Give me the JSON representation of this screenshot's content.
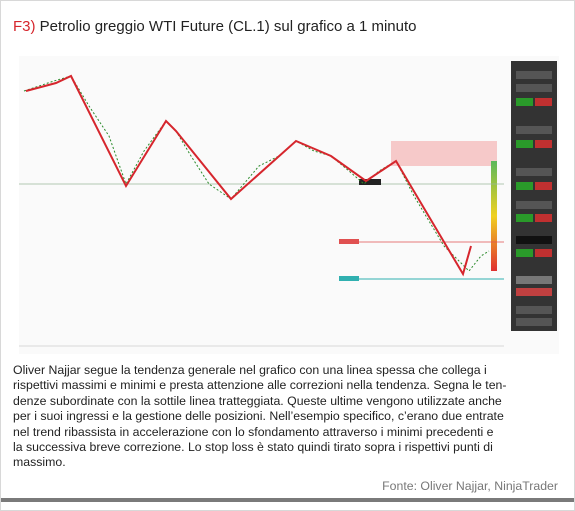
{
  "figure": {
    "label": "F3)",
    "title": "Petrolio greggio WTI Future (CL.1) sul grafico a 1 minuto"
  },
  "caption": {
    "lines": [
      "Oliver Najjar segue la tendenza generale nel grafico con una linea spessa che collega i",
      "rispettivi massimi e minimi e presta attenzione alle correzioni nella tendenza. Segna le ten-",
      "denze subordinate con la sottile linea tratteggiata. Queste ultime vengono utilizzate anche",
      "per i suoi ingressi e la gestione delle posizioni. Nell’esempio specifico, c’erano due entrate",
      "nel trend ribassista in accelerazione con lo sfondamento attraverso i minimi precedenti e",
      "la successiva breve correzione. Lo stop loss è stato quindi tirato sopra i rispettivi punti di",
      "massimo."
    ]
  },
  "source": "Fonte: Oliver Najjar, NinjaTrader"
}
